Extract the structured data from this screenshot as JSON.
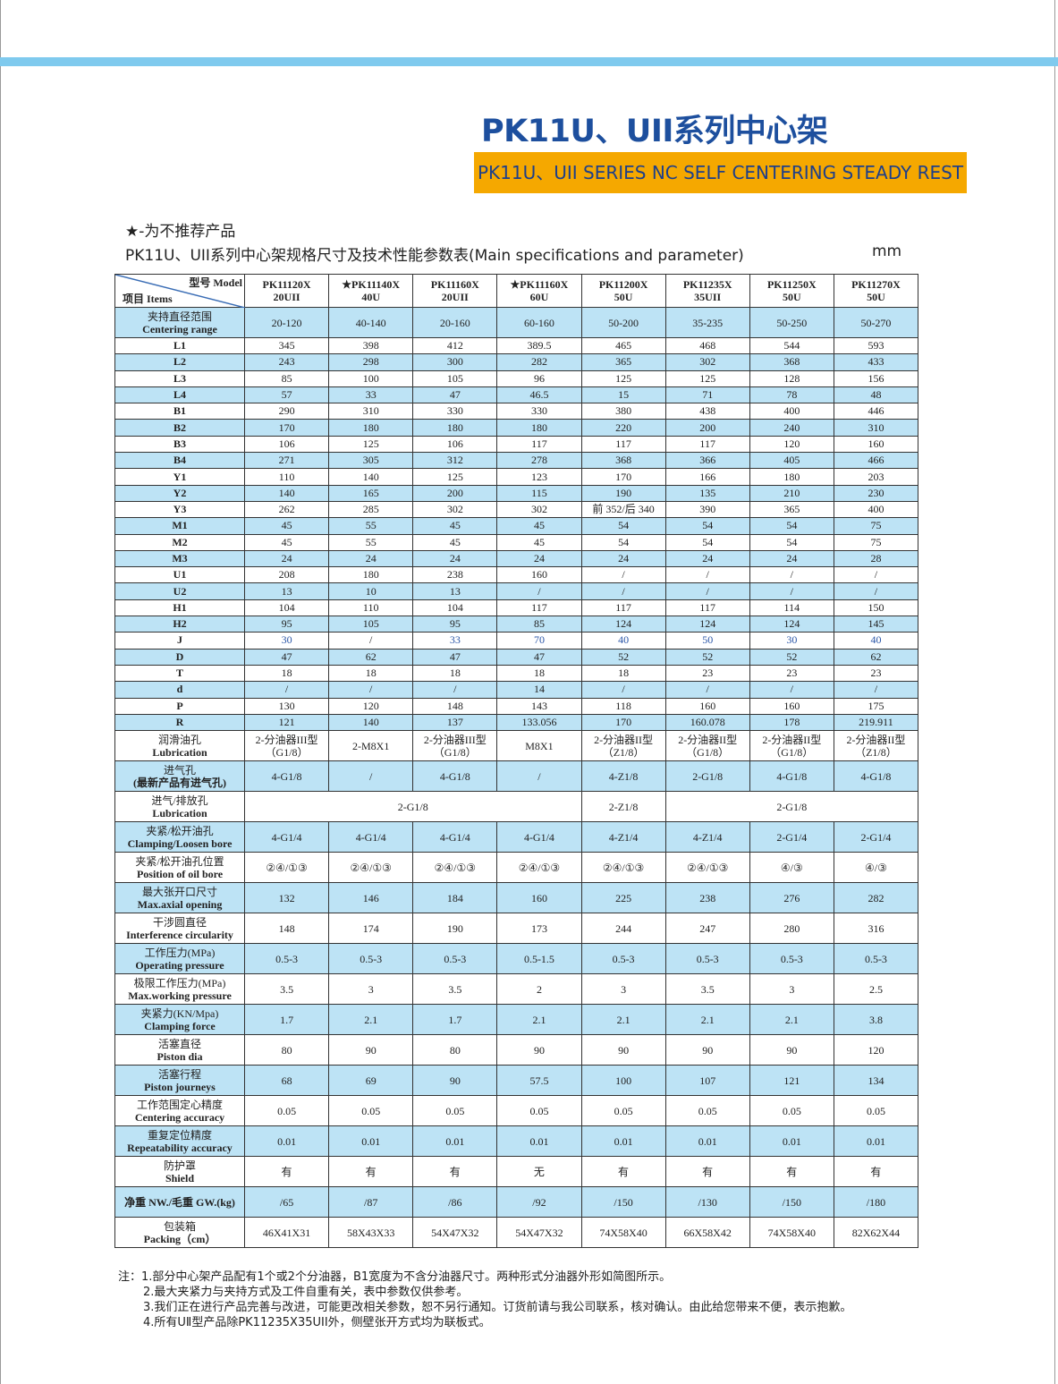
{
  "title": "PK11U、UII系列中心架",
  "subtitle": "PK11U、UII SERIES NC SELF CENTERING STEADY REST",
  "star_note": "★-为不推荐产品",
  "caption": "PK11U、UII系列中心架规格尺寸及技术性能参数表(Main specifications and parameter)",
  "unit": "mm",
  "colors": {
    "accent_bar": "#7fcaee",
    "title": "#1d4f9e",
    "subtitle_bg": "#f5a800",
    "row_alt": "#bde3f5"
  },
  "header": {
    "model_label": "型号 Model",
    "items_label": "项目 Items",
    "models": [
      [
        "PK11120X",
        "20UII"
      ],
      [
        "★PK11140X",
        "40U"
      ],
      [
        "PK11160X",
        "20UII"
      ],
      [
        "★PK11160X",
        "60U"
      ],
      [
        "PK11200X",
        "50U"
      ],
      [
        "PK11235X",
        "35UII"
      ],
      [
        "PK11250X",
        "50U"
      ],
      [
        "PK11270X",
        "50U"
      ]
    ]
  },
  "rows": [
    {
      "cn": "夹持直径范围",
      "en": "Centering range",
      "values": [
        "20-120",
        "40-140",
        "20-160",
        "60-160",
        "50-200",
        "35-235",
        "50-250",
        "50-270"
      ]
    },
    {
      "en": "L1",
      "values": [
        "345",
        "398",
        "412",
        "389.5",
        "465",
        "468",
        "544",
        "593"
      ]
    },
    {
      "en": "L2",
      "values": [
        "243",
        "298",
        "300",
        "282",
        "365",
        "302",
        "368",
        "433"
      ]
    },
    {
      "en": "L3",
      "values": [
        "85",
        "100",
        "105",
        "96",
        "125",
        "125",
        "128",
        "156"
      ]
    },
    {
      "en": "L4",
      "values": [
        "57",
        "33",
        "47",
        "46.5",
        "15",
        "71",
        "78",
        "48"
      ]
    },
    {
      "en": "B1",
      "values": [
        "290",
        "310",
        "330",
        "330",
        "380",
        "438",
        "400",
        "446"
      ]
    },
    {
      "en": "B2",
      "values": [
        "170",
        "180",
        "180",
        "180",
        "220",
        "200",
        "240",
        "310"
      ]
    },
    {
      "en": "B3",
      "values": [
        "106",
        "125",
        "106",
        "117",
        "117",
        "117",
        "120",
        "160"
      ]
    },
    {
      "en": "B4",
      "values": [
        "271",
        "305",
        "312",
        "278",
        "368",
        "366",
        "405",
        "466"
      ]
    },
    {
      "en": "Y1",
      "values": [
        "110",
        "140",
        "125",
        "123",
        "170",
        "166",
        "180",
        "203"
      ]
    },
    {
      "en": "Y2",
      "values": [
        "140",
        "165",
        "200",
        "115",
        "190",
        "135",
        "210",
        "230"
      ]
    },
    {
      "en": "Y3",
      "values": [
        "262",
        "285",
        "302",
        "302",
        "前 352/后 340",
        "390",
        "365",
        "400"
      ]
    },
    {
      "en": "M1",
      "values": [
        "45",
        "55",
        "45",
        "45",
        "54",
        "54",
        "54",
        "75"
      ]
    },
    {
      "en": "M2",
      "values": [
        "45",
        "55",
        "45",
        "45",
        "54",
        "54",
        "54",
        "75"
      ]
    },
    {
      "en": "M3",
      "values": [
        "24",
        "24",
        "24",
        "24",
        "24",
        "24",
        "24",
        "28"
      ]
    },
    {
      "en": "U1",
      "values": [
        "208",
        "180",
        "238",
        "160",
        "/",
        "/",
        "/",
        "/"
      ]
    },
    {
      "en": "U2",
      "values": [
        "13",
        "10",
        "13",
        "/",
        "/",
        "/",
        "/",
        "/"
      ]
    },
    {
      "en": "H1",
      "values": [
        "104",
        "110",
        "104",
        "117",
        "117",
        "117",
        "114",
        "150"
      ]
    },
    {
      "en": "H2",
      "values": [
        "95",
        "105",
        "95",
        "85",
        "124",
        "124",
        "124",
        "145"
      ]
    },
    {
      "en": "J",
      "values": [
        "30",
        "/",
        "33",
        "70",
        "40",
        "50",
        "30",
        "40"
      ],
      "highlight": "#2b57a8"
    },
    {
      "en": "D",
      "values": [
        "47",
        "62",
        "47",
        "47",
        "52",
        "52",
        "52",
        "62"
      ]
    },
    {
      "en": "T",
      "values": [
        "18",
        "18",
        "18",
        "18",
        "18",
        "23",
        "23",
        "23"
      ]
    },
    {
      "en": "d",
      "values": [
        "/",
        "/",
        "/",
        "14",
        "/",
        "/",
        "/",
        "/"
      ]
    },
    {
      "en": "P",
      "values": [
        "130",
        "120",
        "148",
        "143",
        "118",
        "160",
        "160",
        "175"
      ]
    },
    {
      "en": "R",
      "values": [
        "121",
        "140",
        "137",
        "133.056",
        "170",
        "160.078",
        "178",
        "219.911"
      ]
    },
    {
      "cn": "润滑油孔",
      "en": "Lubrication",
      "values": [
        "2-分油器III型\n（G1/8）",
        "2-M8X1",
        "2-分油器III型\n（G1/8）",
        "M8X1",
        "2-分油器II型\n（Z1/8）",
        "2-分油器II型\n（G1/8）",
        "2-分油器II型\n（G1/8）",
        "2-分油器II型\n（Z1/8）"
      ]
    },
    {
      "cn": "进气孔",
      "en": "(最新产品有进气孔)",
      "values": [
        "4-G1/8",
        "/",
        "4-G1/8",
        "/",
        "4-Z1/8",
        "2-G1/8",
        "4-G1/8",
        "4-G1/8"
      ]
    },
    {
      "cn": "进气/排放孔",
      "en": "Lubrication",
      "merged": [
        {
          "text": "2-G1/8",
          "span": 4
        },
        {
          "text": "2-Z1/8",
          "span": 1
        },
        {
          "text": "2-G1/8",
          "span": 3
        }
      ]
    },
    {
      "cn": "夹紧/松开油孔",
      "en": "Clamping/Loosen bore",
      "values": [
        "4-G1/4",
        "4-G1/4",
        "4-G1/4",
        "4-G1/4",
        "4-Z1/4",
        "4-Z1/4",
        "2-G1/4",
        "2-G1/4"
      ]
    },
    {
      "cn": "夹紧/松开油孔位置",
      "en": "Position of oil bore",
      "values": [
        "②④/①③",
        "②④/①③",
        "②④/①③",
        "②④/①③",
        "②④/①③",
        "②④/①③",
        "④/③",
        "④/③"
      ]
    },
    {
      "cn": "最大张开口尺寸",
      "en": "Max.axial opening",
      "values": [
        "132",
        "146",
        "184",
        "160",
        "225",
        "238",
        "276",
        "282"
      ]
    },
    {
      "cn": "干涉圆直径",
      "en": "Interference circularity",
      "values": [
        "148",
        "174",
        "190",
        "173",
        "244",
        "247",
        "280",
        "316"
      ]
    },
    {
      "cn": "工作压力(MPa)",
      "en": "Operating pressure",
      "values": [
        "0.5-3",
        "0.5-3",
        "0.5-3",
        "0.5-1.5",
        "0.5-3",
        "0.5-3",
        "0.5-3",
        "0.5-3"
      ]
    },
    {
      "cn": "极限工作压力(MPa)",
      "en": "Max.working pressure",
      "values": [
        "3.5",
        "3",
        "3.5",
        "2",
        "3",
        "3.5",
        "3",
        "2.5"
      ]
    },
    {
      "cn": "夹紧力(KN/Mpa)",
      "en": "Clamping force",
      "values": [
        "1.7",
        "2.1",
        "1.7",
        "2.1",
        "2.1",
        "2.1",
        "2.1",
        "3.8"
      ]
    },
    {
      "cn": "活塞直径",
      "en": "Piston dia",
      "values": [
        "80",
        "90",
        "80",
        "90",
        "90",
        "90",
        "90",
        "120"
      ]
    },
    {
      "cn": "活塞行程",
      "en": "Piston journeys",
      "values": [
        "68",
        "69",
        "90",
        "57.5",
        "100",
        "107",
        "121",
        "134"
      ]
    },
    {
      "cn": "工作范围定心精度",
      "en": "Centering accuracy",
      "values": [
        "0.05",
        "0.05",
        "0.05",
        "0.05",
        "0.05",
        "0.05",
        "0.05",
        "0.05"
      ]
    },
    {
      "cn": "重复定位精度",
      "en": "Repeatability accuracy",
      "values": [
        "0.01",
        "0.01",
        "0.01",
        "0.01",
        "0.01",
        "0.01",
        "0.01",
        "0.01"
      ]
    },
    {
      "cn": "防护罩",
      "en": "Shield",
      "values": [
        "有",
        "有",
        "有",
        "无",
        "有",
        "有",
        "有",
        "有"
      ]
    },
    {
      "en": "净重 NW./毛重 GW.(kg)",
      "values": [
        "/65",
        "/87",
        "/86",
        "/92",
        "/150",
        "/130",
        "/150",
        "/180"
      ]
    },
    {
      "cn": "包装箱",
      "en": "Packing（cm）",
      "values": [
        "46X41X31",
        "58X43X33",
        "54X47X32",
        "54X47X32",
        "74X58X40",
        "66X58X42",
        "74X58X40",
        "82X62X44"
      ]
    }
  ],
  "notes": [
    "注：1.部分中心架产品配有1个或2个分油器，B1宽度为不含分油器尺寸。两种形式分油器外形如简图所示。",
    "2.最大夹紧力与夹持方式及工件自重有关，表中参数仅供参考。",
    "3.我们正在进行产品完善与改进，可能更改相关参数，恕不另行通知。订货前请与我公司联系，核对确认。由此给您带来不便，表示抱歉。",
    "4.所有UⅡ型产品除PK11235X35UII外，侧壁张开方式均为联板式。"
  ]
}
